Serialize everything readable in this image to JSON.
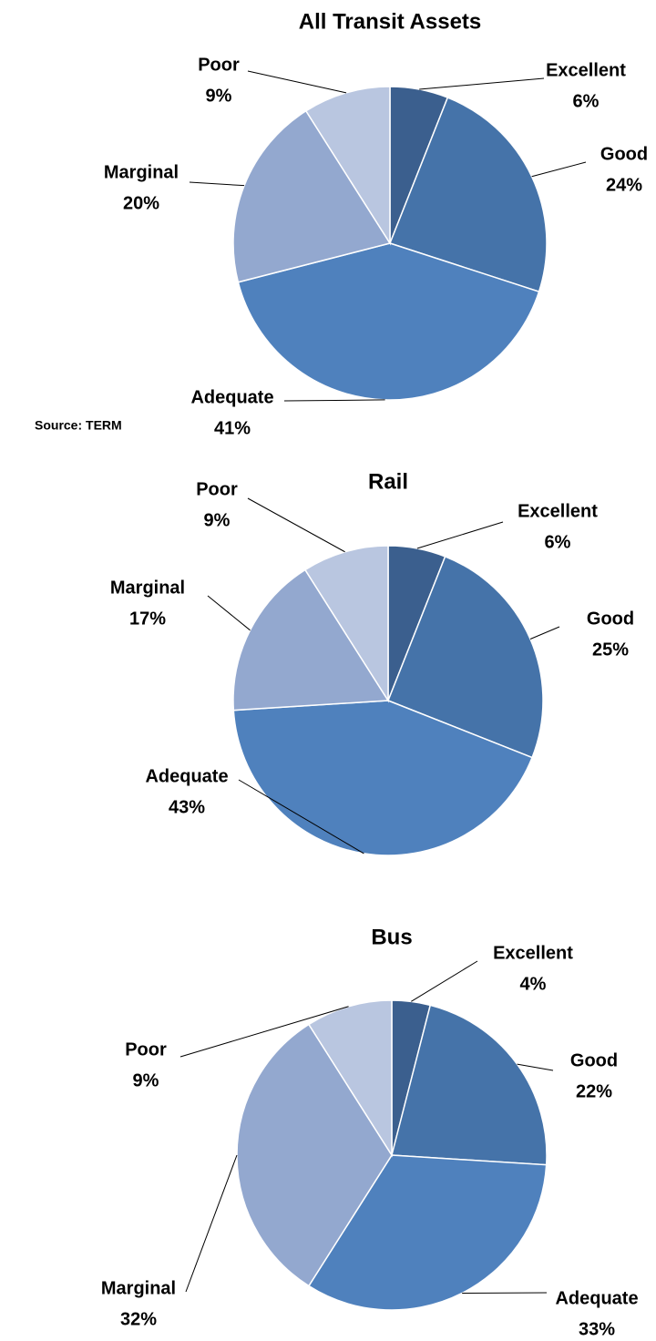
{
  "chart_data": [
    {
      "type": "pie",
      "title": "All Transit Assets",
      "source": "Source: TERM",
      "categories": [
        "Excellent",
        "Good",
        "Adequate",
        "Marginal",
        "Poor"
      ],
      "values": [
        6,
        24,
        41,
        20,
        9
      ],
      "value_labels": [
        "6%",
        "24%",
        "41%",
        "20%",
        "9%"
      ],
      "colors": [
        "#3b5f8e",
        "#4573a9",
        "#4f81bd",
        "#93a8cf",
        "#b9c6e0"
      ]
    },
    {
      "type": "pie",
      "title": "Rail",
      "categories": [
        "Excellent",
        "Good",
        "Adequate",
        "Marginal",
        "Poor"
      ],
      "values": [
        6,
        25,
        43,
        17,
        9
      ],
      "value_labels": [
        "6%",
        "25%",
        "43%",
        "17%",
        "9%"
      ],
      "colors": [
        "#3b5f8e",
        "#4573a9",
        "#4f81bd",
        "#93a8cf",
        "#b9c6e0"
      ]
    },
    {
      "type": "pie",
      "title": "Bus",
      "categories": [
        "Excellent",
        "Good",
        "Adequate",
        "Marginal",
        "Poor"
      ],
      "values": [
        4,
        22,
        33,
        32,
        9
      ],
      "value_labels": [
        "4%",
        "22%",
        "33%",
        "32%",
        "9%"
      ],
      "colors": [
        "#3b5f8e",
        "#4573a9",
        "#4f81bd",
        "#93a8cf",
        "#b9c6e0"
      ]
    }
  ]
}
